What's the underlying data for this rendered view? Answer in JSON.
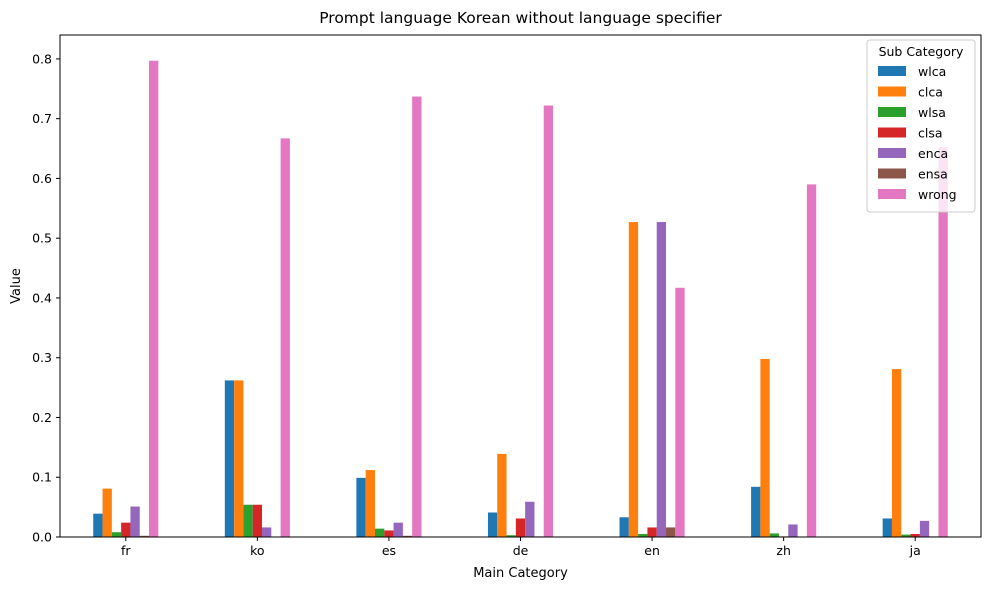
{
  "chart_data": {
    "type": "bar",
    "title": "Prompt language Korean without language specifier",
    "xlabel": "Main Category",
    "ylabel": "Value",
    "ylim": [
      0,
      0.84
    ],
    "yticks": [
      0.0,
      0.1,
      0.2,
      0.3,
      0.4,
      0.5,
      0.6,
      0.7,
      0.8
    ],
    "ytick_labels": [
      "0.0",
      "0.1",
      "0.2",
      "0.3",
      "0.4",
      "0.5",
      "0.6",
      "0.7",
      "0.8"
    ],
    "categories": [
      "fr",
      "ko",
      "es",
      "de",
      "en",
      "zh",
      "ja"
    ],
    "legend": {
      "title": "Sub Category",
      "placement": "top-right"
    },
    "grid": false,
    "series": [
      {
        "name": "wlca",
        "color": "#1f77b4",
        "values": [
          0.039,
          0.262,
          0.099,
          0.041,
          0.033,
          0.084,
          0.031
        ]
      },
      {
        "name": "clca",
        "color": "#ff7f0e",
        "values": [
          0.081,
          0.262,
          0.112,
          0.139,
          0.527,
          0.298,
          0.281
        ]
      },
      {
        "name": "wlsa",
        "color": "#2ca02c",
        "values": [
          0.008,
          0.054,
          0.014,
          0.003,
          0.005,
          0.006,
          0.004
        ]
      },
      {
        "name": "clsa",
        "color": "#d62728",
        "values": [
          0.024,
          0.054,
          0.011,
          0.031,
          0.016,
          0.001,
          0.005
        ]
      },
      {
        "name": "enca",
        "color": "#9467bd",
        "values": [
          0.051,
          0.016,
          0.024,
          0.059,
          0.527,
          0.021,
          0.027
        ]
      },
      {
        "name": "ensa",
        "color": "#8c564b",
        "values": [
          0.002,
          0.0,
          0.002,
          0.001,
          0.016,
          0.0,
          0.001
        ]
      },
      {
        "name": "wrong",
        "color": "#e377c2",
        "values": [
          0.797,
          0.667,
          0.737,
          0.722,
          0.417,
          0.59,
          0.652
        ]
      }
    ]
  }
}
